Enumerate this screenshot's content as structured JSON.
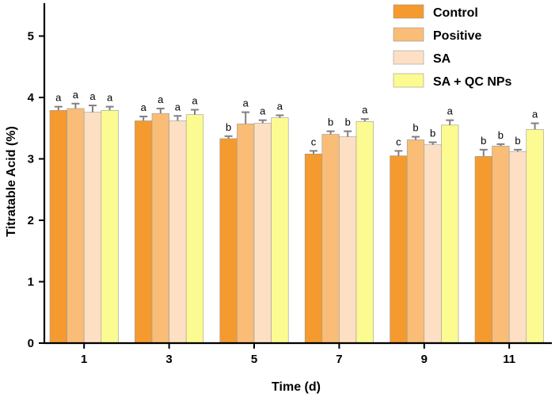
{
  "chart_data": {
    "type": "bar",
    "title": "",
    "xlabel": "Time (d)",
    "ylabel": "Titratable Acid (%)",
    "ylim": [
      0,
      5.5
    ],
    "yticks": [
      0,
      1,
      2,
      3,
      4,
      5
    ],
    "grid": false,
    "legend_position": "top-right",
    "categories": [
      "1",
      "3",
      "5",
      "7",
      "9",
      "11"
    ],
    "series": [
      {
        "name": "Control",
        "color": "#f59a2e",
        "values": [
          3.79,
          3.62,
          3.33,
          3.08,
          3.05,
          3.04
        ],
        "errors": [
          0.06,
          0.07,
          0.04,
          0.05,
          0.08,
          0.11
        ],
        "significance": [
          "a",
          "a",
          "b",
          "c",
          "c",
          "b"
        ]
      },
      {
        "name": "Positive",
        "color": "#f9bd78",
        "values": [
          3.82,
          3.74,
          3.57,
          3.4,
          3.31,
          3.21
        ],
        "errors": [
          0.08,
          0.08,
          0.19,
          0.05,
          0.05,
          0.03
        ],
        "significance": [
          "a",
          "a",
          "a",
          "b",
          "b",
          "b"
        ]
      },
      {
        "name": "SA",
        "color": "#fde0c4",
        "values": [
          3.76,
          3.62,
          3.58,
          3.36,
          3.23,
          3.12
        ],
        "errors": [
          0.11,
          0.08,
          0.05,
          0.09,
          0.04,
          0.03
        ],
        "significance": [
          "a",
          "a",
          "a",
          "b",
          "b",
          "b"
        ]
      },
      {
        "name": "SA + QC NPs",
        "color": "#fbfb92",
        "values": [
          3.79,
          3.72,
          3.67,
          3.61,
          3.55,
          3.48
        ],
        "errors": [
          0.06,
          0.08,
          0.04,
          0.04,
          0.08,
          0.1
        ],
        "significance": [
          "a",
          "a",
          "a",
          "a",
          "a",
          "a"
        ]
      }
    ]
  }
}
